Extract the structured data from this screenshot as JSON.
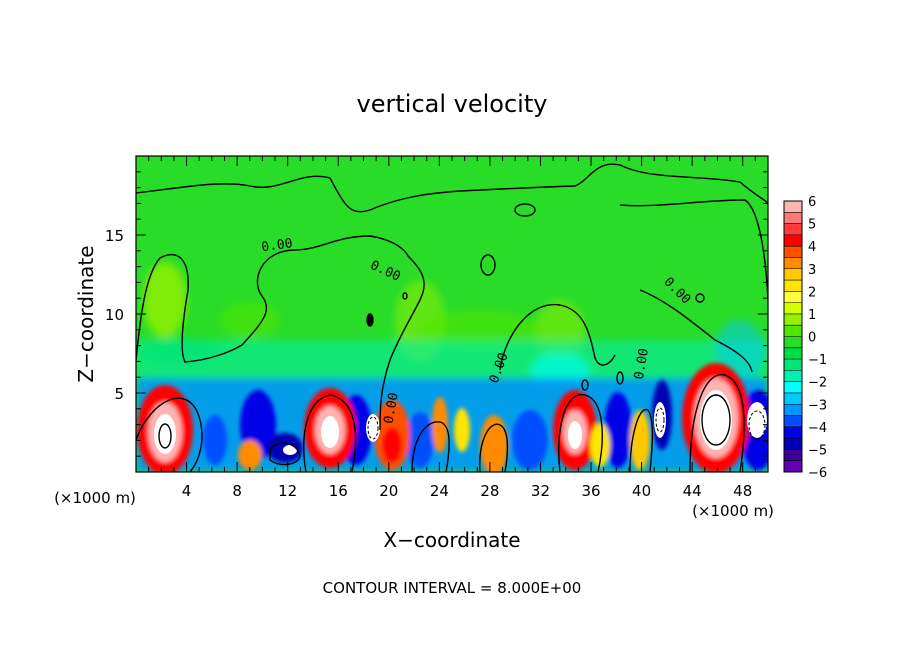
{
  "chart_data": {
    "type": "heatmap",
    "title": "vertical velocity",
    "xlabel": "X−coordinate",
    "ylabel": "Z−coordinate",
    "x_unit_label": "(×1000 m)",
    "z_unit_label": "(×1000 m)",
    "footer": "CONTOUR INTERVAL = 8.000E+00",
    "xlim": [
      0,
      50
    ],
    "ylim": [
      0,
      20
    ],
    "x_ticks": [
      4,
      8,
      12,
      16,
      20,
      24,
      28,
      32,
      36,
      40,
      44,
      48
    ],
    "y_ticks": [
      5,
      10,
      15
    ],
    "contour_labels": [
      "0.00",
      "0.00",
      "0.00",
      "0.00",
      "0.00",
      "0.00"
    ],
    "colorbar": {
      "labels": [
        "6",
        "5",
        "4",
        "3",
        "2",
        "1",
        "0",
        "−1",
        "−2",
        "−3",
        "−4",
        "−5",
        "−6"
      ],
      "levels": [
        6,
        5.5,
        5,
        4.5,
        4,
        3.5,
        3,
        2.5,
        2,
        1.5,
        1,
        0.5,
        0,
        -0.5,
        -1,
        -1.5,
        -2,
        -2.5,
        -3,
        -3.5,
        -4,
        -4.5,
        -5,
        -5.5,
        -6
      ],
      "colors": [
        "#ffb4b4",
        "#ff7878",
        "#ff3c3c",
        "#ff0000",
        "#ff5000",
        "#ff8c00",
        "#ffc800",
        "#ffe600",
        "#ffff3c",
        "#d2ff00",
        "#96f000",
        "#50e600",
        "#28dc28",
        "#00dc46",
        "#00e678",
        "#00f0b4",
        "#00ffff",
        "#00c8ff",
        "#0096ff",
        "#0050ff",
        "#0000e6",
        "#0000b4",
        "#3c0096",
        "#6400b4"
      ]
    }
  }
}
